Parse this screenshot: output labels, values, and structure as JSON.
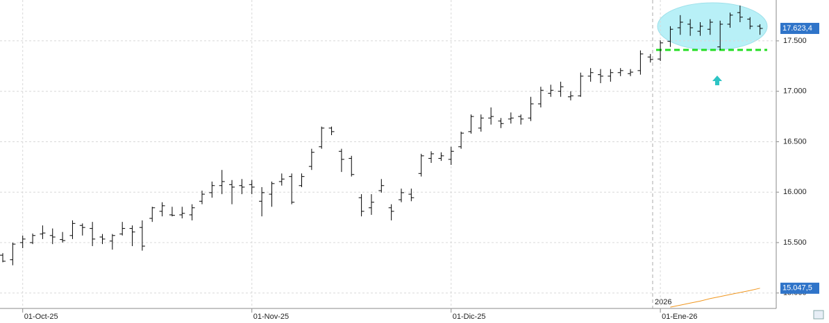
{
  "chart_data": {
    "type": "ohlc",
    "categories": [
      null,
      null,
      "01-Oct-25",
      null,
      null,
      null,
      null,
      null,
      null,
      null,
      null,
      null,
      null,
      null,
      null,
      null,
      null,
      null,
      null,
      null,
      null,
      null,
      null,
      null,
      null,
      "01-Nov-25",
      null,
      null,
      null,
      null,
      null,
      null,
      null,
      null,
      null,
      null,
      null,
      null,
      null,
      null,
      null,
      null,
      null,
      null,
      null,
      "01-Dic-25",
      null,
      null,
      null,
      null,
      null,
      null,
      null,
      null,
      null,
      null,
      null,
      null,
      null,
      null,
      null,
      null,
      null,
      null,
      null,
      null,
      "01-Ene-26",
      null,
      null,
      null,
      null,
      null,
      null,
      null,
      null,
      null,
      null
    ],
    "open": [
      15375,
      15330,
      15500,
      15500,
      15585,
      15570,
      15530,
      15570,
      15670,
      15640,
      15555,
      15515,
      15585,
      15640,
      15650,
      15740,
      15810,
      15775,
      15775,
      15775,
      15910,
      15995,
      16065,
      16075,
      16065,
      16075,
      15910,
      15980,
      16105,
      16155,
      16065,
      16255,
      16450,
      16635,
      16405,
      16335,
      15945,
      15845,
      16015,
      15845,
      15925,
      15980,
      16185,
      16335,
      16335,
      16325,
      16450,
      16600,
      16635,
      16735,
      16705,
      16725,
      16750,
      16735,
      16875,
      16980,
      17000,
      16945,
      16955,
      17150,
      17165,
      17150,
      17185,
      17175,
      17205,
      17340,
      17320,
      17495,
      17630,
      17665,
      17595,
      17615,
      17440,
      17665,
      17780,
      17715,
      17645
    ],
    "high": [
      15395,
      15500,
      15570,
      15590,
      15670,
      15640,
      15605,
      15720,
      15690,
      15705,
      15585,
      15585,
      15705,
      15670,
      15720,
      15855,
      15900,
      15855,
      15855,
      15880,
      16015,
      16105,
      16220,
      16120,
      16130,
      16120,
      16050,
      16105,
      16185,
      16185,
      16185,
      16430,
      16650,
      16650,
      16430,
      16360,
      15980,
      15980,
      16130,
      15880,
      16035,
      16035,
      16380,
      16405,
      16395,
      16450,
      16600,
      16770,
      16770,
      16840,
      16735,
      16790,
      16770,
      16945,
      17045,
      17065,
      17095,
      17000,
      17185,
      17230,
      17220,
      17220,
      17230,
      17220,
      17405,
      17370,
      17505,
      17645,
      17755,
      17715,
      17685,
      17715,
      17700,
      17780,
      17850,
      17735,
      17665
    ],
    "low": [
      15305,
      15275,
      15445,
      15485,
      15535,
      15485,
      15500,
      15535,
      15570,
      15465,
      15485,
      15430,
      15570,
      15465,
      15420,
      15705,
      15760,
      15760,
      15740,
      15720,
      15880,
      15945,
      15980,
      15880,
      15980,
      15980,
      15760,
      15855,
      16065,
      15880,
      16050,
      16220,
      16430,
      16565,
      16200,
      16155,
      15760,
      15775,
      15995,
      15720,
      15900,
      15910,
      16155,
      16290,
      16310,
      16270,
      16430,
      16580,
      16600,
      16670,
      16635,
      16680,
      16670,
      16705,
      16840,
      16945,
      16945,
      16910,
      16945,
      17095,
      17080,
      17095,
      17150,
      17150,
      17165,
      17285,
      17300,
      17440,
      17560,
      17550,
      17550,
      17560,
      17410,
      17630,
      17685,
      17615,
      17560
    ],
    "close": [
      15315,
      15485,
      15535,
      15570,
      15595,
      15555,
      15520,
      15690,
      15650,
      15535,
      15535,
      15570,
      15640,
      15605,
      15465,
      15845,
      15865,
      15770,
      15790,
      15845,
      15980,
      16065,
      16105,
      16050,
      16050,
      16050,
      15995,
      16085,
      16130,
      15900,
      16155,
      16395,
      16635,
      16600,
      16325,
      16175,
      15810,
      15900,
      16065,
      15810,
      15995,
      15945,
      16360,
      16380,
      16360,
      16405,
      16585,
      16750,
      16735,
      16750,
      16680,
      16735,
      16725,
      16875,
      17010,
      17010,
      17045,
      16955,
      17150,
      17185,
      17150,
      17185,
      17205,
      17190,
      17370,
      17315,
      17480,
      17615,
      17685,
      17630,
      17645,
      17685,
      17665,
      17755,
      17735,
      17645,
      17623.4
    ],
    "close_label": "17.623,4",
    "color": "#000000",
    "overlay": {
      "color": "#f0961e",
      "values": [
        null,
        null,
        null,
        null,
        null,
        null,
        null,
        null,
        null,
        null,
        null,
        null,
        null,
        null,
        null,
        null,
        null,
        null,
        null,
        null,
        null,
        null,
        null,
        null,
        null,
        null,
        null,
        null,
        null,
        null,
        null,
        null,
        null,
        null,
        null,
        null,
        null,
        null,
        null,
        null,
        null,
        null,
        null,
        null,
        null,
        null,
        null,
        null,
        null,
        null,
        null,
        null,
        null,
        null,
        null,
        null,
        null,
        null,
        null,
        null,
        null,
        null,
        null,
        null,
        null,
        null,
        null,
        14860,
        14880,
        14900,
        14920,
        14945,
        14965,
        14985,
        15005,
        15025,
        15047.5
      ],
      "last_label": "15.047,5"
    },
    "support_level": 17410,
    "support_color": "#22dd22",
    "annotation": "2026",
    "ylim": [
      14847,
      17905
    ],
    "yticks": [
      {
        "value": 15000,
        "label": "15.000"
      },
      {
        "value": 15500,
        "label": "15.500"
      },
      {
        "value": 16000,
        "label": "16.000"
      },
      {
        "value": 16500,
        "label": "16.500"
      },
      {
        "value": 17000,
        "label": "17.000"
      },
      {
        "value": 17500,
        "label": "17.500"
      }
    ],
    "grid": true
  }
}
